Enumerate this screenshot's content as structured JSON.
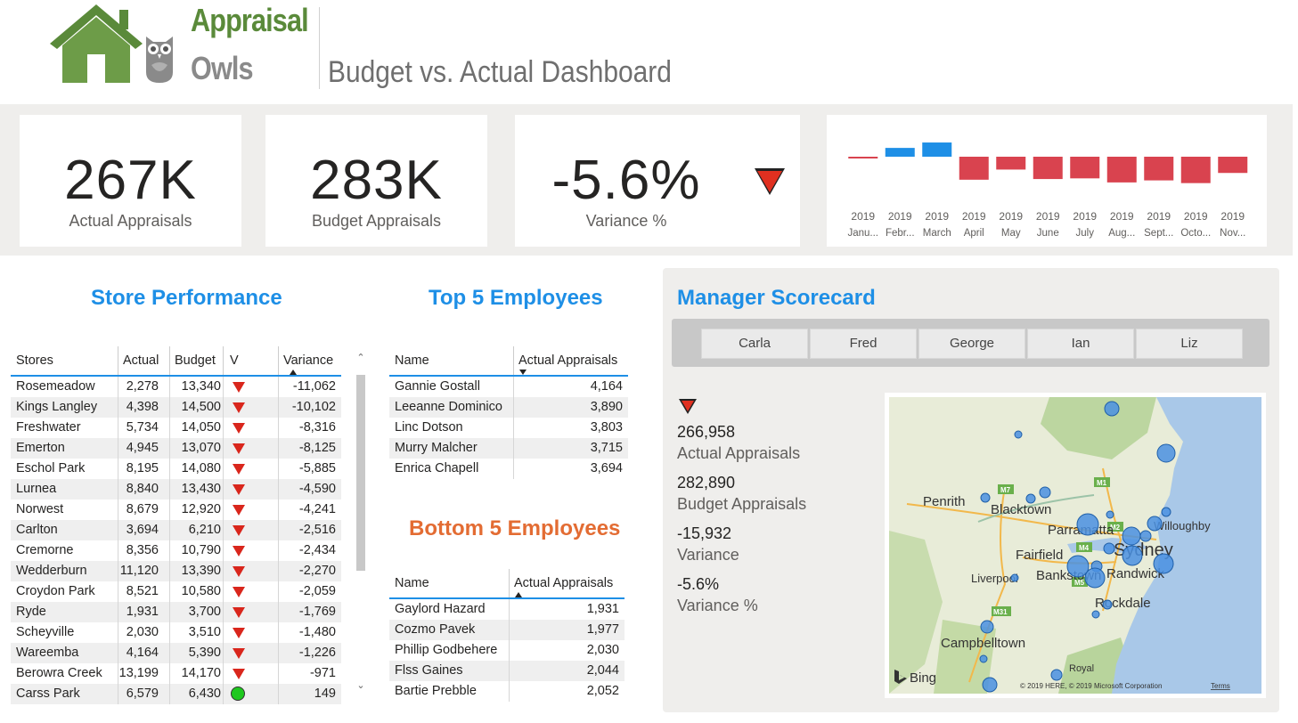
{
  "brand": {
    "line1": "Appraisal",
    "line2": "Owls"
  },
  "title": "Budget vs. Actual Dashboard",
  "kpis": {
    "actual": {
      "value": "267K",
      "label": "Actual Appraisals"
    },
    "budget": {
      "value": "283K",
      "label": "Budget Appraisals"
    },
    "variance": {
      "value": "-5.6%",
      "label": "Variance %"
    }
  },
  "chart_data": {
    "type": "bar",
    "categories": [
      "2019 January",
      "2019 February",
      "2019 March",
      "2019 April",
      "2019 May",
      "2019 June",
      "2019 July",
      "2019 August",
      "2019 September",
      "2019 October",
      "2019 November"
    ],
    "tick_year": [
      "2019",
      "2019",
      "2019",
      "2019",
      "2019",
      "2019",
      "2019",
      "2019",
      "2019",
      "2019",
      "2019"
    ],
    "tick_month": [
      "Janu...",
      "Febr...",
      "March",
      "April",
      "May",
      "June",
      "July",
      "Aug...",
      "Sept...",
      "Octo...",
      "Nov..."
    ],
    "values": [
      -0.2,
      1.3,
      2.1,
      -3.4,
      -1.9,
      -3.3,
      -3.2,
      -3.8,
      -3.5,
      -3.9,
      -2.4
    ],
    "colors": {
      "positive": "#1e8fe6",
      "negative": "#d9434f"
    },
    "title": "",
    "xlabel": "",
    "ylabel": ""
  },
  "store_performance": {
    "title": "Store Performance",
    "headers": {
      "stores": "Stores",
      "actual": "Actual",
      "budget": "Budget",
      "v": "V",
      "variance": "Variance"
    },
    "rows": [
      {
        "store": "Rosemeadow",
        "actual": "2,278",
        "budget": "13,340",
        "flag": "down",
        "variance": "-11,062"
      },
      {
        "store": "Kings Langley",
        "actual": "4,398",
        "budget": "14,500",
        "flag": "down",
        "variance": "-10,102"
      },
      {
        "store": "Freshwater",
        "actual": "5,734",
        "budget": "14,050",
        "flag": "down",
        "variance": "-8,316"
      },
      {
        "store": "Emerton",
        "actual": "4,945",
        "budget": "13,070",
        "flag": "down",
        "variance": "-8,125"
      },
      {
        "store": "Eschol Park",
        "actual": "8,195",
        "budget": "14,080",
        "flag": "down",
        "variance": "-5,885"
      },
      {
        "store": "Lurnea",
        "actual": "8,840",
        "budget": "13,430",
        "flag": "down",
        "variance": "-4,590"
      },
      {
        "store": "Norwest",
        "actual": "8,679",
        "budget": "12,920",
        "flag": "down",
        "variance": "-4,241"
      },
      {
        "store": "Carlton",
        "actual": "3,694",
        "budget": "6,210",
        "flag": "down",
        "variance": "-2,516"
      },
      {
        "store": "Cremorne",
        "actual": "8,356",
        "budget": "10,790",
        "flag": "down",
        "variance": "-2,434"
      },
      {
        "store": "Wedderburn",
        "actual": "11,120",
        "budget": "13,390",
        "flag": "down",
        "variance": "-2,270"
      },
      {
        "store": "Croydon Park",
        "actual": "8,521",
        "budget": "10,580",
        "flag": "down",
        "variance": "-2,059"
      },
      {
        "store": "Ryde",
        "actual": "1,931",
        "budget": "3,700",
        "flag": "down",
        "variance": "-1,769"
      },
      {
        "store": "Scheyville",
        "actual": "2,030",
        "budget": "3,510",
        "flag": "down",
        "variance": "-1,480"
      },
      {
        "store": "Wareemba",
        "actual": "4,164",
        "budget": "5,390",
        "flag": "down",
        "variance": "-1,226"
      },
      {
        "store": "Berowra Creek",
        "actual": "13,199",
        "budget": "14,170",
        "flag": "down",
        "variance": "-971"
      },
      {
        "store": "Carss Park",
        "actual": "6,579",
        "budget": "6,430",
        "flag": "up",
        "variance": "149"
      }
    ]
  },
  "top5": {
    "title": "Top 5 Employees",
    "headers": {
      "name": "Name",
      "actual": "Actual Appraisals"
    },
    "rows": [
      {
        "name": "Gannie Gostall",
        "value": "4,164"
      },
      {
        "name": "Leeanne Dominico",
        "value": "3,890"
      },
      {
        "name": "Linc Dotson",
        "value": "3,803"
      },
      {
        "name": "Murry Malcher",
        "value": "3,715"
      },
      {
        "name": "Enrica Chapell",
        "value": "3,694"
      }
    ]
  },
  "bottom5": {
    "title": "Bottom 5 Employees",
    "headers": {
      "name": "Name",
      "actual": "Actual Appraisals"
    },
    "rows": [
      {
        "name": "Gaylord Hazard",
        "value": "1,931"
      },
      {
        "name": "Cozmo Pavek",
        "value": "1,977"
      },
      {
        "name": "Phillip Godbehere",
        "value": "2,030"
      },
      {
        "name": "Flss Gaines",
        "value": "2,044"
      },
      {
        "name": "Bartie Prebble",
        "value": "2,052"
      }
    ]
  },
  "manager": {
    "title": "Manager Scorecard",
    "managers": [
      "Carla",
      "Fred",
      "George",
      "Ian",
      "Liz"
    ],
    "actual_value": "266,958",
    "actual_label": "Actual Appraisals",
    "budget_value": "282,890",
    "budget_label": "Budget Appraisals",
    "variance_value": "-15,932",
    "variance_label": "Variance",
    "variance_pct_value": "-5.6%",
    "variance_pct_label": "Variance %"
  },
  "map": {
    "places": [
      "Penrith",
      "Blacktown",
      "Parramatta",
      "Fairfield",
      "Liverpool",
      "Bankstown",
      "Sydney",
      "Randwick",
      "Rockdale",
      "Campbelltown",
      "Willoughby",
      "Royal"
    ],
    "roads": [
      "M7",
      "M1",
      "M2",
      "M4",
      "M5",
      "M31"
    ],
    "logo": "Bing",
    "copyright": "© 2019 HERE, © 2019 Microsoft Corporation",
    "terms": "Terms"
  }
}
